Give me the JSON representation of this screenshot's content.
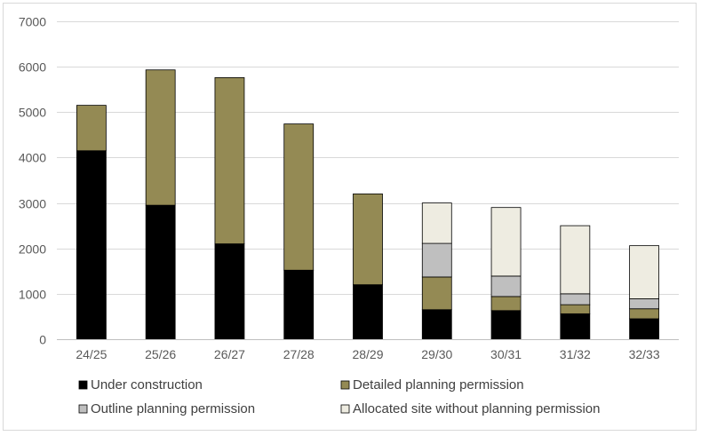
{
  "chart_data": {
    "type": "bar",
    "stacked": true,
    "title": "",
    "xlabel": "",
    "ylabel": "",
    "ylim": [
      0,
      7000
    ],
    "yticks": [
      0,
      1000,
      2000,
      3000,
      4000,
      5000,
      6000,
      7000
    ],
    "grid": true,
    "legend_position": "bottom",
    "categories": [
      "24/25",
      "25/26",
      "26/27",
      "27/28",
      "28/29",
      "29/30",
      "30/31",
      "31/32",
      "32/33"
    ],
    "series": [
      {
        "name": "Under construction",
        "color": "#000000",
        "values": [
          4150,
          2950,
          2100,
          1520,
          1200,
          650,
          630,
          560,
          450
        ]
      },
      {
        "name": "Detailed planning permission",
        "color": "#948a54",
        "values": [
          1000,
          2980,
          3660,
          3220,
          2000,
          720,
          310,
          200,
          220
        ]
      },
      {
        "name": "Outline planning permission",
        "color": "#bfbfbf",
        "values": [
          0,
          0,
          0,
          0,
          0,
          740,
          450,
          240,
          220
        ]
      },
      {
        "name": "Allocated site without planning permission",
        "color": "#eeece1",
        "values": [
          0,
          0,
          0,
          0,
          0,
          890,
          1510,
          1500,
          1170
        ]
      }
    ]
  }
}
